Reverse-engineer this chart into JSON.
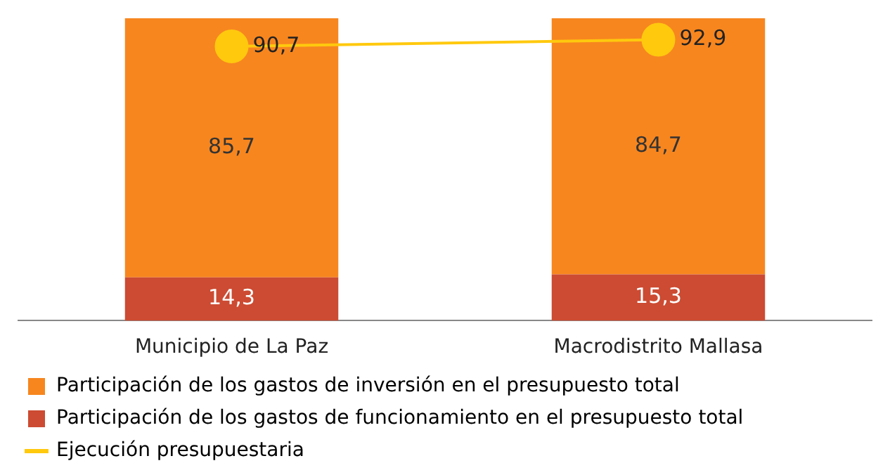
{
  "chart_data": {
    "type": "bar",
    "stacked": true,
    "categories": [
      "Municipio de La Paz",
      "Macrodistrito Mallasa"
    ],
    "series": [
      {
        "name": "Participación de los gastos de funcionamiento en el presupuesto total",
        "color": "#cc4b32",
        "values": [
          14.3,
          15.3
        ],
        "value_labels": [
          "14,3",
          "15,3"
        ]
      },
      {
        "name": "Participación de los gastos de inversión en el presupuesto total",
        "color": "#f7861f",
        "values": [
          85.7,
          84.7
        ],
        "value_labels": [
          "85,7",
          "84,7"
        ]
      },
      {
        "name": "Ejecución presupuestaria",
        "type": "line",
        "color": "#ffc90e",
        "values": [
          90.7,
          92.9
        ],
        "value_labels": [
          "90,7",
          "92,9"
        ],
        "marker": "circle"
      }
    ],
    "tick_labels": "x",
    "grid": false,
    "legend": "bottom"
  }
}
